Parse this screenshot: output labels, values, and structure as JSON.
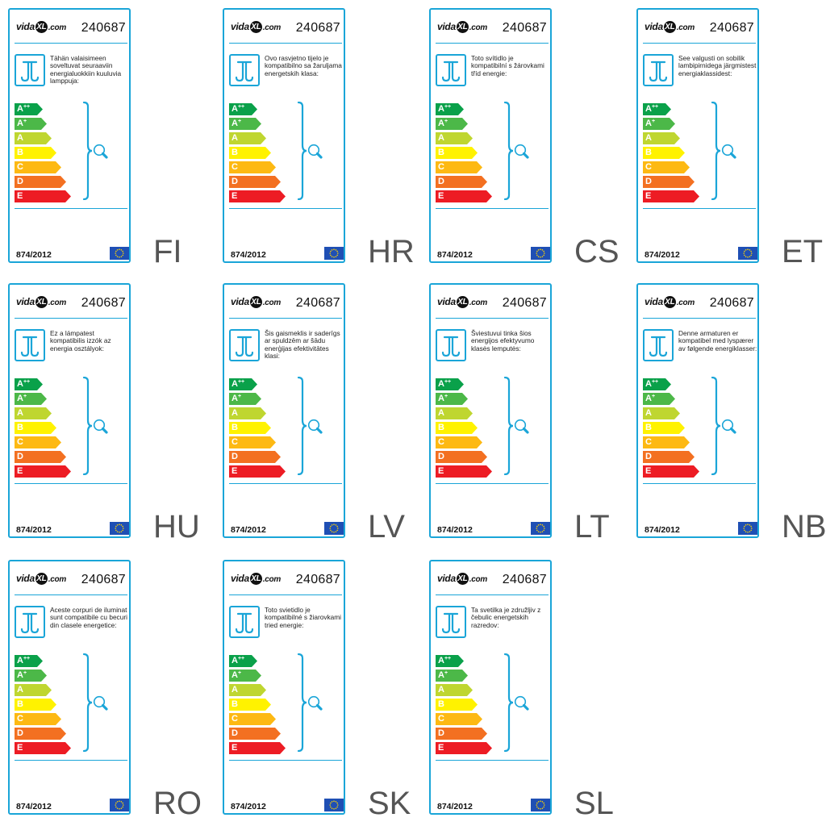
{
  "brand": {
    "prefix": "vida",
    "xl": "XL",
    "suffix": ".com"
  },
  "product_number": "240687",
  "regulation": "874/2012",
  "classes": [
    {
      "base": "A",
      "sup": "++",
      "color": "#0aa14a"
    },
    {
      "base": "A",
      "sup": "+",
      "color": "#4cb848"
    },
    {
      "base": "A",
      "sup": "",
      "color": "#bfd630"
    },
    {
      "base": "B",
      "sup": "",
      "color": "#fff200"
    },
    {
      "base": "C",
      "sup": "",
      "color": "#fdb913"
    },
    {
      "base": "D",
      "sup": "",
      "color": "#f37021"
    },
    {
      "base": "E",
      "sup": "",
      "color": "#ed1c24"
    }
  ],
  "colors": {
    "accent": "#1aa5d8",
    "eu_blue": "#1f4fb4",
    "eu_star": "#ffd200"
  },
  "labels": [
    {
      "lang": "FI",
      "text": "Tähän valaisimeen soveltuvat seuraaviin energialuokkiin kuuluvia lamppuja:"
    },
    {
      "lang": "HR",
      "text": "Ovo rasvjetno tijelo je kompatibilno sa žaruljama energetskih klasa:"
    },
    {
      "lang": "CS",
      "text": "Toto svítidlo je kompatibilní s žárovkami tříd energie:"
    },
    {
      "lang": "ET",
      "text": "See valgusti on sobilik lambipirnidega järgmistest energiaklassidest:"
    },
    {
      "lang": "HU",
      "text": "Ez a lámpatest kompatibilis izzók az energia osztályok:"
    },
    {
      "lang": "LV",
      "text": "Šis gaismeklis ir saderīgs ar spuldzēm ar šādu enerģijas efektivitātes klasi:"
    },
    {
      "lang": "LT",
      "text": "Šviestuvui tinka šios energijos efektyvumo klasės lemputės:"
    },
    {
      "lang": "NB",
      "text": "Denne armaturen er kompatibel med lyspærer av følgende energiklasser:"
    },
    {
      "lang": "RO",
      "text": "Aceste corpuri de iluminat sunt compatibile cu becuri din clasele energetice:"
    },
    {
      "lang": "SK",
      "text": "Toto svietidlo je kompatibilné s žiarovkami tried energie:"
    },
    {
      "lang": "SL",
      "text": "Ta svetilka je združljiv z čebulic energetskih razredov:"
    }
  ]
}
